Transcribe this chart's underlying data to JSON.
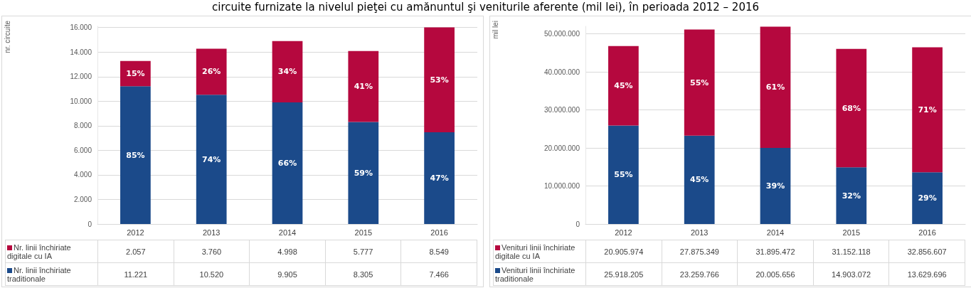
{
  "chart_data": [
    {
      "type": "bar",
      "title": "circuite furnizate la nivelul pieţei cu amănuntul şi veniturile aferente (mil lei), în perioada 2012 – 2016",
      "ylabel": "nr. circuite",
      "categories": [
        "2012",
        "2013",
        "2014",
        "2015",
        "2016"
      ],
      "stacked": true,
      "series": [
        {
          "name": "Nr. linii închiriate traditionale",
          "color": "#1b4a8a",
          "values": [
            11221,
            10520,
            9905,
            8305,
            7466
          ],
          "value_labels": [
            "11.221",
            "10.520",
            "9.905",
            "8.305",
            "7.466"
          ]
        },
        {
          "name": "Nr. linii închiriate digitale cu IA",
          "color": "#b5083e",
          "values": [
            2057,
            3760,
            4998,
            5777,
            8549
          ],
          "value_labels": [
            "2.057",
            "3.760",
            "4.998",
            "5.777",
            "8.549"
          ]
        }
      ],
      "annotations": [
        "85%",
        "74%",
        "66%",
        "59%",
        "47%",
        "15%",
        "26%",
        "34%",
        "41%",
        "53%"
      ],
      "ylim": [
        0,
        16100
      ],
      "yticks": [
        {
          "value": 0,
          "label": "0"
        },
        {
          "value": 2000,
          "label": "2.000"
        },
        {
          "value": 4000,
          "label": "4.000"
        },
        {
          "value": 6000,
          "label": "6.000"
        },
        {
          "value": 8000,
          "label": "8.000"
        },
        {
          "value": 10000,
          "label": "10.000"
        },
        {
          "value": 12000,
          "label": "12.000"
        },
        {
          "value": 14000,
          "label": "14.000"
        },
        {
          "value": 16000,
          "label": "16.000"
        }
      ],
      "grid": "y",
      "legend": "bottom"
    },
    {
      "type": "bar",
      "ylabel": "mil lei",
      "categories": [
        "2012",
        "2013",
        "2014",
        "2015",
        "2016"
      ],
      "stacked": true,
      "series": [
        {
          "name": "Venituri linii închiriate traditionale",
          "color": "#1b4a8a",
          "values": [
            25918205,
            23259766,
            20005656,
            14903072,
            13629696
          ],
          "value_labels": [
            "25.918.205",
            "23.259.766",
            "20.005.656",
            "14.903.072",
            "13.629.696"
          ]
        },
        {
          "name": "Venituri linii închiriate digitale cu IA",
          "color": "#b5083e",
          "values": [
            20905974,
            27875349,
            31895472,
            31152118,
            32856607
          ],
          "value_labels": [
            "20.905.974",
            "27.875.349",
            "31.895.472",
            "31.152.118",
            "32.856.607"
          ]
        }
      ],
      "annotations": [
        "55%",
        "45%",
        "39%",
        "32%",
        "29%",
        "45%",
        "55%",
        "61%",
        "68%",
        "71%"
      ],
      "ylim": [
        0,
        52000000
      ],
      "yticks": [
        {
          "value": 0,
          "label": "0"
        },
        {
          "value": 10000000,
          "label": "10.000.000"
        },
        {
          "value": 20000000,
          "label": "20.000.000"
        },
        {
          "value": 30000000,
          "label": "30.000.000"
        },
        {
          "value": 40000000,
          "label": "40.000.000"
        },
        {
          "value": 50000000,
          "label": "50.000.000"
        }
      ],
      "grid": "y",
      "legend": "bottom"
    }
  ]
}
